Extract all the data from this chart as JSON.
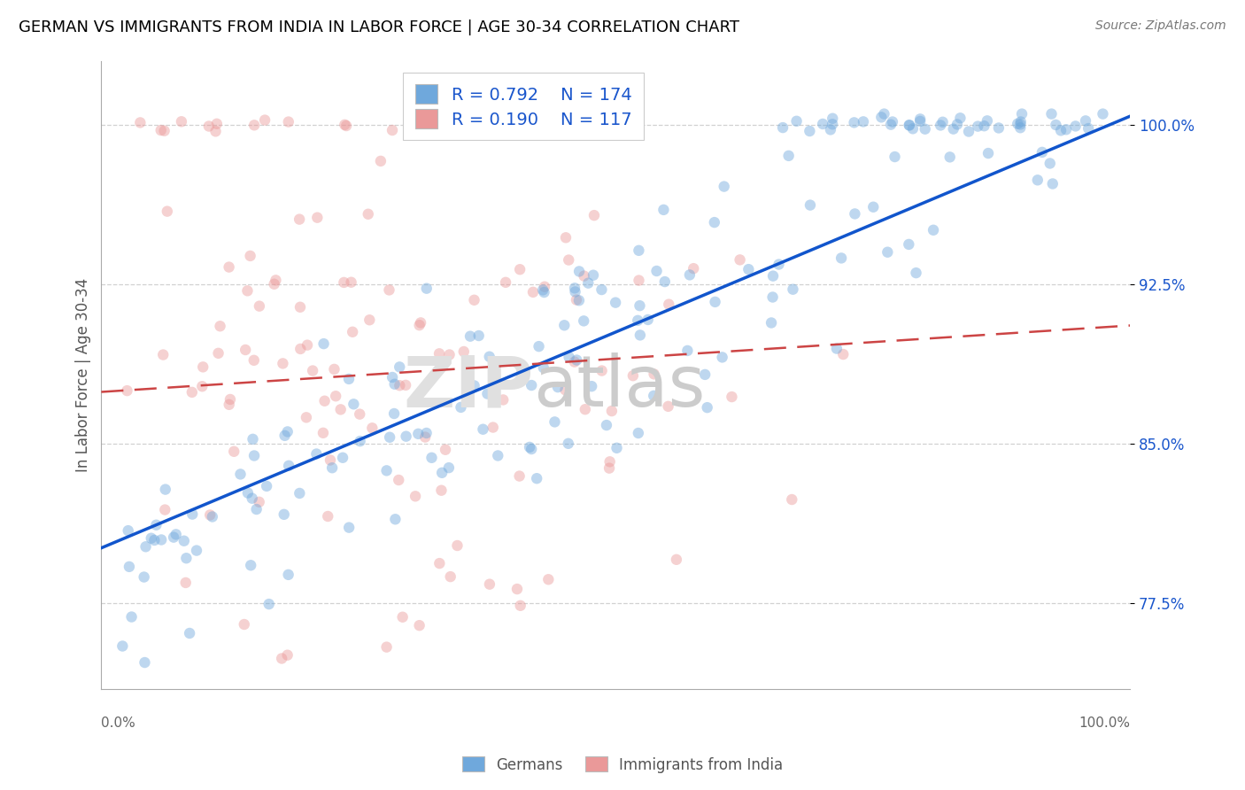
{
  "title": "GERMAN VS IMMIGRANTS FROM INDIA IN LABOR FORCE | AGE 30-34 CORRELATION CHART",
  "source": "Source: ZipAtlas.com",
  "ylabel": "In Labor Force | Age 30-34",
  "xlim": [
    -0.02,
    1.02
  ],
  "ylim": [
    0.735,
    1.03
  ],
  "yticks": [
    0.775,
    0.85,
    0.925,
    1.0
  ],
  "ytick_labels": [
    "77.5%",
    "85.0%",
    "92.5%",
    "100.0%"
  ],
  "legend_r_german": "R = 0.792",
  "legend_n_german": "N = 174",
  "legend_r_india": "R = 0.190",
  "legend_n_india": "N = 117",
  "german_color": "#6fa8dc",
  "india_color": "#ea9999",
  "german_line_color": "#1155cc",
  "india_line_color": "#cc4444",
  "background_color": "#ffffff",
  "grid_color": "#cccccc",
  "title_color": "#000000",
  "axis_label_color": "#555555",
  "tick_label_color_blue": "#1a56cc",
  "legend_r_color": "#1a56cc",
  "marker_size": 80,
  "alpha_german": 0.45,
  "alpha_india": 0.45,
  "german_line_intercept": 0.805,
  "german_line_slope": 0.195,
  "india_line_intercept": 0.875,
  "india_line_slope": 0.03
}
